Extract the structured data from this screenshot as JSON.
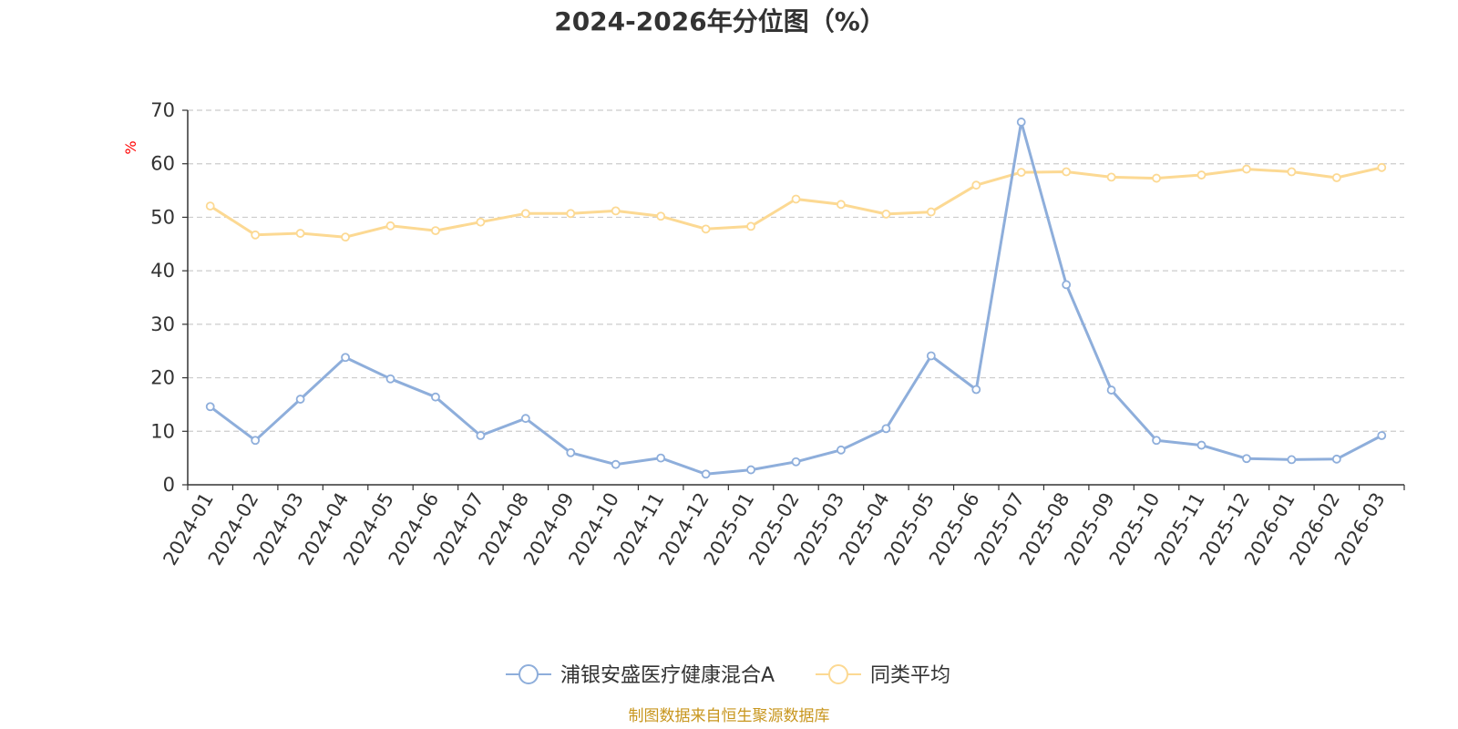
{
  "chart_data": {
    "type": "line",
    "title": "2024-2026年分位图（%）",
    "xlabel": "",
    "ylabel": "%",
    "ylim": [
      0,
      70
    ],
    "yticks": [
      0,
      10,
      20,
      30,
      40,
      50,
      60,
      70
    ],
    "grid": "horizontal-dashed",
    "categories": [
      "2024-01",
      "2024-02",
      "2024-03",
      "2024-04",
      "2024-05",
      "2024-06",
      "2024-07",
      "2024-08",
      "2024-09",
      "2024-10",
      "2024-11",
      "2024-12",
      "2025-01",
      "2025-02",
      "2025-03",
      "2025-04",
      "2025-05",
      "2025-06",
      "2025-07",
      "2025-08",
      "2025-09",
      "2025-10",
      "2025-11",
      "2025-12",
      "2026-01",
      "2026-02",
      "2026-03"
    ],
    "series": [
      {
        "name": "浦银安盛医疗健康混合A",
        "color": "#8eaedb",
        "values": [
          14.6,
          8.3,
          16.0,
          23.8,
          19.8,
          16.4,
          9.2,
          12.4,
          6.0,
          3.8,
          5.0,
          2.0,
          2.8,
          4.3,
          6.5,
          10.5,
          24.1,
          17.8,
          67.8,
          37.4,
          17.7,
          8.3,
          7.4,
          4.9,
          4.7,
          4.8,
          9.2
        ]
      },
      {
        "name": "同类平均",
        "color": "#fcd993",
        "values": [
          52.1,
          46.7,
          47.0,
          46.3,
          48.4,
          47.5,
          49.1,
          50.7,
          50.7,
          51.2,
          50.2,
          47.8,
          48.3,
          53.4,
          52.4,
          50.6,
          51.0,
          56.0,
          58.4,
          58.5,
          57.5,
          57.3,
          57.9,
          59.0,
          58.5,
          57.4,
          59.3
        ]
      }
    ],
    "legend_position": "bottom-center",
    "source_note": "制图数据来自恒生聚源数据库"
  }
}
